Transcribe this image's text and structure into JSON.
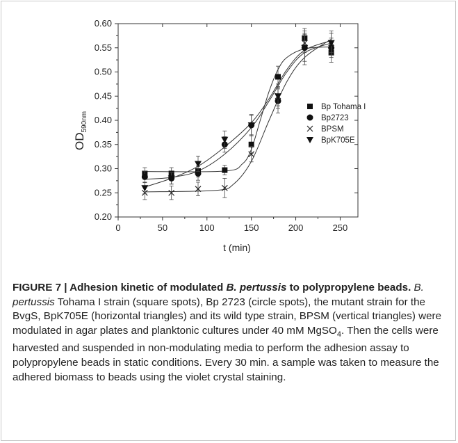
{
  "chart_data": {
    "type": "scatter",
    "xlabel": "t (min)",
    "ylabel_main": "OD",
    "ylabel_sub": "590nm",
    "xlim": [
      0,
      270
    ],
    "ylim": [
      0.2,
      0.6
    ],
    "xticks": [
      0,
      50,
      100,
      150,
      200,
      250
    ],
    "yticks": [
      0.2,
      0.25,
      0.3,
      0.35,
      0.4,
      0.45,
      0.5,
      0.55,
      0.6
    ],
    "legend_position": "right",
    "grid": false,
    "series": [
      {
        "name": "Bp Tohama I",
        "marker": "square",
        "x": [
          30,
          60,
          90,
          120,
          150,
          180,
          210,
          240
        ],
        "y": [
          0.29,
          0.29,
          0.295,
          0.297,
          0.35,
          0.49,
          0.57,
          0.54
        ],
        "err": [
          0.012,
          0.012,
          0.012,
          0.01,
          0.018,
          0.022,
          0.02,
          0.02
        ],
        "fit": [
          [
            30,
            0.294
          ],
          [
            120,
            0.295
          ],
          [
            140,
            0.31
          ],
          [
            150,
            0.34
          ],
          [
            160,
            0.4
          ],
          [
            170,
            0.46
          ],
          [
            180,
            0.505
          ],
          [
            190,
            0.53
          ],
          [
            210,
            0.548
          ],
          [
            240,
            0.552
          ]
        ]
      },
      {
        "name": "Bp2723",
        "marker": "circle",
        "x": [
          30,
          60,
          90,
          120,
          150,
          180,
          210,
          240
        ],
        "y": [
          0.283,
          0.28,
          0.29,
          0.35,
          0.39,
          0.44,
          0.55,
          0.55
        ],
        "err": [
          0.012,
          0.012,
          0.014,
          0.016,
          0.02,
          0.025,
          0.028,
          0.02
        ],
        "fit": [
          [
            30,
            0.278
          ],
          [
            60,
            0.282
          ],
          [
            90,
            0.295
          ],
          [
            120,
            0.33
          ],
          [
            150,
            0.385
          ],
          [
            170,
            0.44
          ],
          [
            190,
            0.5
          ],
          [
            210,
            0.54
          ],
          [
            240,
            0.56
          ]
        ]
      },
      {
        "name": "BPSM",
        "marker": "x",
        "x": [
          30,
          60,
          90,
          120,
          150,
          180,
          210,
          240
        ],
        "y": [
          0.25,
          0.25,
          0.258,
          0.26,
          0.33,
          0.45,
          0.56,
          0.56
        ],
        "err": [
          0.014,
          0.014,
          0.014,
          0.02,
          0.016,
          0.02,
          0.02,
          0.02
        ],
        "fit": [
          [
            30,
            0.252
          ],
          [
            110,
            0.255
          ],
          [
            130,
            0.268
          ],
          [
            150,
            0.315
          ],
          [
            170,
            0.4
          ],
          [
            190,
            0.48
          ],
          [
            210,
            0.53
          ],
          [
            240,
            0.568
          ]
        ]
      },
      {
        "name": "BpK705E",
        "marker": "triangle-down",
        "x": [
          30,
          60,
          90,
          120,
          150,
          180,
          210,
          240
        ],
        "y": [
          0.26,
          0.28,
          0.31,
          0.36,
          0.39,
          0.45,
          0.55,
          0.56
        ],
        "err": [
          0.012,
          0.012,
          0.016,
          0.018,
          0.022,
          0.025,
          0.035,
          0.025
        ],
        "fit": [
          [
            30,
            0.262
          ],
          [
            60,
            0.28
          ],
          [
            90,
            0.305
          ],
          [
            120,
            0.345
          ],
          [
            150,
            0.395
          ],
          [
            170,
            0.445
          ],
          [
            190,
            0.505
          ],
          [
            210,
            0.545
          ],
          [
            240,
            0.565
          ]
        ]
      }
    ]
  },
  "caption": {
    "figure_label": "FIGURE 7 | Adhesion kinetic of modulated ",
    "figure_label_italic": "B. pertussis",
    "figure_label_end": " to polypropylene beads.",
    "body_italic_1": "B. pertussis",
    "body_1": " Tohama I strain (square spots), Bp 2723 (circle spots), the mutant strain for the BvgS, BpK705E (horizontal triangles) and its wild type strain, BPSM (vertical triangles) were modulated in agar plates and planktonic cultures under 40 mM MgSO",
    "body_sub": "4",
    "body_2": ". Then the cells were harvested and suspended in non-modulating media to perform the adhesion assay to polypropylene beads in static conditions. Every 30 min. a sample was taken to measure the adhered biomass to beads using the violet crystal staining."
  }
}
